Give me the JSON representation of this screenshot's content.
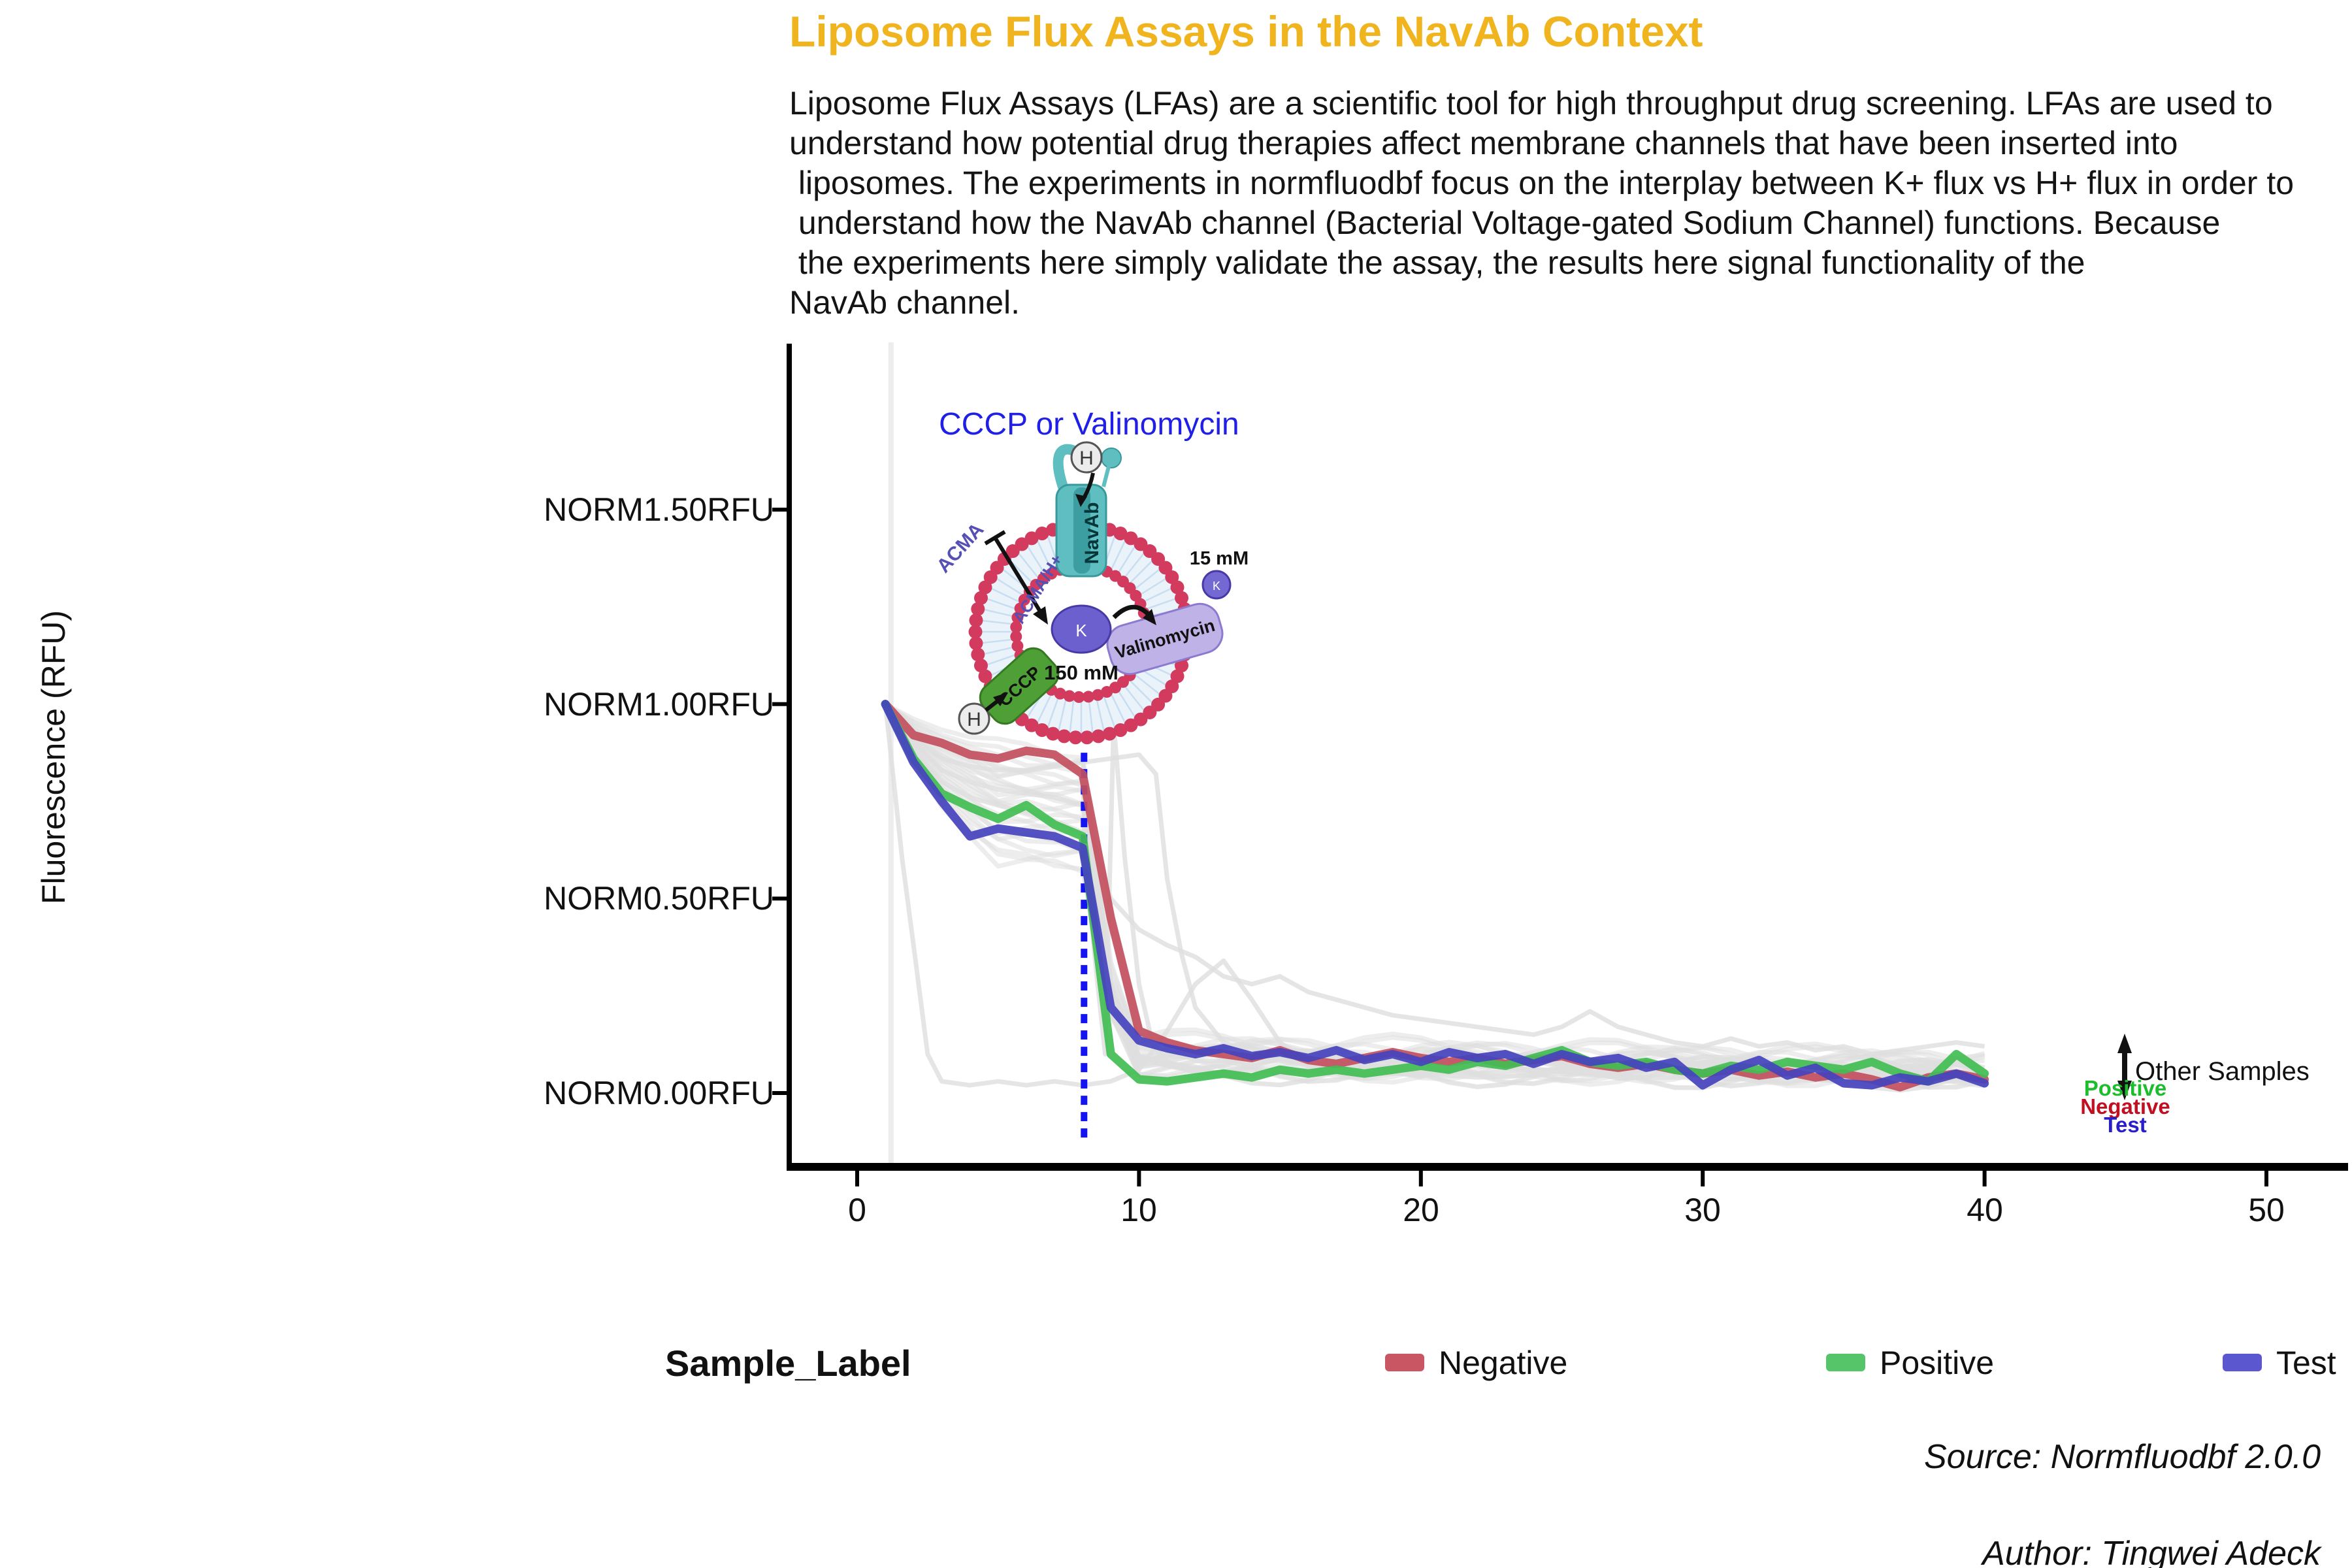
{
  "title": {
    "text": "Liposome Flux Assays in the NavAb Context",
    "color": "#F0B41E"
  },
  "description": {
    "text": "Liposome Flux Assays (LFAs) are a scientific tool for high throughput drug screening. LFAs are used to\nunderstand how potential drug therapies affect membrane channels that have been inserted into\n liposomes. The experiments in normfluodbf focus on the interplay between K+ flux vs H+ flux in order to\n understand how the NavAb channel (Bacterial Voltage-gated Sodium Channel) functions. Because\n the experiments here simply validate the assay, the results here signal functionality of the\nNavAb channel."
  },
  "axis": {
    "y_label": "Fluorescence (RFU)"
  },
  "chart_data": {
    "type": "line",
    "title": "Liposome Flux Assays in the NavAb Context",
    "xlabel": "",
    "ylabel": "Fluorescence (RFU)",
    "x_start": 1,
    "x_step": 1,
    "x_end": 40,
    "xlim": [
      -2.4,
      52.9
    ],
    "ylim": [
      -0.19,
      1.93
    ],
    "grid": false,
    "legend_position": "bottom",
    "x_ticks": [
      0,
      10,
      20,
      30,
      40,
      50
    ],
    "y_ticks": [
      {
        "label": "NORM1.50RFU",
        "value": 1.5
      },
      {
        "label": "NORM1.00RFU",
        "value": 1.0
      },
      {
        "label": "NORM0.50RFU",
        "value": 0.5
      },
      {
        "label": "NORM0.00RFU",
        "value": 0.0
      }
    ],
    "series": [
      {
        "name": "Negative",
        "color": "#C24F5D",
        "values": [
          1.0,
          0.92,
          0.9,
          0.87,
          0.86,
          0.88,
          0.87,
          0.82,
          0.45,
          0.16,
          0.13,
          0.11,
          0.1,
          0.09,
          0.11,
          0.085,
          0.075,
          0.09,
          0.105,
          0.09,
          0.08,
          0.09,
          0.075,
          0.085,
          0.095,
          0.075,
          0.065,
          0.075,
          0.06,
          0.05,
          0.06,
          0.045,
          0.055,
          0.04,
          0.05,
          0.035,
          0.015,
          0.04,
          0.05,
          0.035
        ]
      },
      {
        "name": "Positive",
        "color": "#41BD53",
        "values": [
          1.0,
          0.86,
          0.77,
          0.735,
          0.705,
          0.74,
          0.69,
          0.66,
          0.1,
          0.035,
          0.03,
          0.04,
          0.05,
          0.04,
          0.06,
          0.05,
          0.06,
          0.05,
          0.06,
          0.07,
          0.06,
          0.08,
          0.07,
          0.09,
          0.11,
          0.08,
          0.07,
          0.08,
          0.06,
          0.05,
          0.07,
          0.06,
          0.08,
          0.07,
          0.06,
          0.08,
          0.05,
          0.03,
          0.1,
          0.05
        ]
      },
      {
        "name": "Test",
        "color": "#4543BE",
        "values": [
          1.0,
          0.85,
          0.75,
          0.66,
          0.68,
          0.67,
          0.66,
          0.63,
          0.22,
          0.135,
          0.115,
          0.1,
          0.115,
          0.095,
          0.105,
          0.09,
          0.11,
          0.085,
          0.1,
          0.08,
          0.105,
          0.09,
          0.1,
          0.075,
          0.1,
          0.08,
          0.09,
          0.065,
          0.08,
          0.02,
          0.06,
          0.085,
          0.045,
          0.065,
          0.025,
          0.02,
          0.04,
          0.03,
          0.05,
          0.025
        ]
      }
    ],
    "other_samples": {
      "color": "#DEDEDE",
      "cluster": [
        {
          "p": 0.9,
          "t": 0.1,
          "s": 0.5
        },
        {
          "p": 0.88,
          "t": 0.08,
          "s": 1.2
        },
        {
          "p": 0.87,
          "t": 0.12,
          "s": 2.1
        },
        {
          "p": 0.855,
          "t": 0.06,
          "s": 3.3
        },
        {
          "p": 0.84,
          "t": 0.09,
          "s": 4.1
        },
        {
          "p": 0.83,
          "t": 0.05,
          "s": 0.9
        },
        {
          "p": 0.825,
          "t": 0.11,
          "s": 5.2
        },
        {
          "p": 0.81,
          "t": 0.07,
          "s": 2.8
        },
        {
          "p": 0.8,
          "t": 0.04,
          "s": 1.7
        },
        {
          "p": 0.79,
          "t": 0.1,
          "s": 3.9
        },
        {
          "p": 0.78,
          "t": 0.06,
          "s": 0.2
        },
        {
          "p": 0.77,
          "t": 0.08,
          "s": 4.7
        },
        {
          "p": 0.755,
          "t": 0.03,
          "s": 2.4
        },
        {
          "p": 0.745,
          "t": 0.09,
          "s": 5.8
        },
        {
          "p": 0.73,
          "t": 0.05,
          "s": 1.1
        },
        {
          "p": 0.72,
          "t": 0.07,
          "s": 3.6
        },
        {
          "p": 0.705,
          "t": 0.04,
          "s": 0.7
        },
        {
          "p": 0.69,
          "t": 0.1,
          "s": 4.4
        },
        {
          "p": 0.675,
          "t": 0.06,
          "s": 2.0
        },
        {
          "p": 0.66,
          "t": 0.03,
          "s": 5.5
        },
        {
          "p": 0.645,
          "t": 0.08,
          "s": 1.5
        },
        {
          "p": 0.63,
          "t": 0.05,
          "s": 3.0
        },
        {
          "p": 0.615,
          "t": 0.07,
          "s": 0.4
        },
        {
          "p": 0.6,
          "t": 0.04,
          "s": 4.9
        }
      ],
      "outliers": [
        {
          "name": "early-drop",
          "points": [
            [
              1,
              1.0
            ],
            [
              1.6,
              0.6
            ],
            [
              2,
              0.38
            ],
            [
              2.5,
              0.1
            ],
            [
              3,
              0.03
            ],
            [
              4,
              0.02
            ],
            [
              5,
              0.03
            ],
            [
              6,
              0.02
            ],
            [
              7,
              0.03
            ],
            [
              8,
              0.02
            ],
            [
              9,
              0.03
            ],
            [
              10,
              0.06
            ],
            [
              11,
              0.16
            ],
            [
              12,
              0.28
            ],
            [
              13,
              0.34
            ],
            [
              14,
              0.24
            ],
            [
              15,
              0.13
            ],
            [
              16,
              0.08
            ],
            [
              17,
              0.06
            ],
            [
              18,
              0.05
            ],
            [
              20,
              0.05
            ],
            [
              22,
              0.04
            ],
            [
              25,
              0.05
            ],
            [
              28,
              0.04
            ],
            [
              30,
              0.04
            ],
            [
              33,
              0.03
            ],
            [
              36,
              0.04
            ],
            [
              38,
              0.03
            ],
            [
              40,
              0.03
            ]
          ]
        },
        {
          "name": "rebound-spike",
          "points": [
            [
              1,
              1.0
            ],
            [
              2,
              0.88
            ],
            [
              3,
              0.8
            ],
            [
              4,
              0.76
            ],
            [
              5,
              0.74
            ],
            [
              6,
              0.72
            ],
            [
              7,
              0.7
            ],
            [
              8,
              0.67
            ],
            [
              8.5,
              0.3
            ],
            [
              8.8,
              0.1
            ],
            [
              9.1,
              0.95
            ],
            [
              9.5,
              0.6
            ],
            [
              10,
              0.28
            ],
            [
              10.5,
              0.12
            ],
            [
              11,
              0.08
            ],
            [
              12,
              0.06
            ],
            [
              13,
              0.05
            ],
            [
              14,
              0.06
            ],
            [
              15,
              0.05
            ],
            [
              16,
              0.06
            ],
            [
              18,
              0.05
            ],
            [
              20,
              0.06
            ],
            [
              22,
              0.05
            ],
            [
              24,
              0.06
            ],
            [
              26,
              0.05
            ],
            [
              28,
              0.06
            ],
            [
              30,
              0.05
            ],
            [
              32,
              0.06
            ],
            [
              34,
              0.05
            ],
            [
              36,
              0.06
            ],
            [
              38,
              0.05
            ],
            [
              40,
              0.05
            ]
          ]
        },
        {
          "name": "late-drop",
          "points": [
            [
              1,
              1.0
            ],
            [
              2,
              0.91
            ],
            [
              3,
              0.86
            ],
            [
              4,
              0.84
            ],
            [
              5,
              0.83
            ],
            [
              6,
              0.83
            ],
            [
              7,
              0.84
            ],
            [
              8,
              0.85
            ],
            [
              9,
              0.86
            ],
            [
              10,
              0.87
            ],
            [
              10.6,
              0.82
            ],
            [
              11,
              0.55
            ],
            [
              11.5,
              0.36
            ],
            [
              12,
              0.22
            ],
            [
              13,
              0.13
            ],
            [
              14,
              0.1
            ],
            [
              15,
              0.09
            ],
            [
              16,
              0.08
            ],
            [
              18,
              0.07
            ],
            [
              20,
              0.06
            ],
            [
              22,
              0.07
            ],
            [
              24,
              0.06
            ],
            [
              26,
              0.05
            ],
            [
              28,
              0.06
            ],
            [
              30,
              0.05
            ],
            [
              32,
              0.05
            ],
            [
              34,
              0.04
            ],
            [
              36,
              0.05
            ],
            [
              38,
              0.04
            ],
            [
              40,
              0.04
            ]
          ]
        },
        {
          "name": "high-tail",
          "points": [
            [
              1,
              1.0
            ],
            [
              2,
              0.9
            ],
            [
              3,
              0.83
            ],
            [
              4,
              0.8
            ],
            [
              5,
              0.78
            ],
            [
              6,
              0.77
            ],
            [
              7,
              0.76
            ],
            [
              8,
              0.74
            ],
            [
              9,
              0.5
            ],
            [
              10,
              0.42
            ],
            [
              11,
              0.38
            ],
            [
              12,
              0.35
            ],
            [
              13,
              0.3
            ],
            [
              14,
              0.28
            ],
            [
              15,
              0.3
            ],
            [
              16,
              0.26
            ],
            [
              17,
              0.24
            ],
            [
              18,
              0.22
            ],
            [
              19,
              0.2
            ],
            [
              20,
              0.19
            ],
            [
              21,
              0.18
            ],
            [
              22,
              0.17
            ],
            [
              23,
              0.16
            ],
            [
              24,
              0.15
            ],
            [
              25,
              0.17
            ],
            [
              26,
              0.21
            ],
            [
              27,
              0.17
            ],
            [
              28,
              0.15
            ],
            [
              29,
              0.13
            ],
            [
              30,
              0.12
            ],
            [
              31,
              0.14
            ],
            [
              32,
              0.12
            ],
            [
              33,
              0.13
            ],
            [
              34,
              0.11
            ],
            [
              35,
              0.12
            ],
            [
              36,
              0.1
            ],
            [
              37,
              0.11
            ],
            [
              38,
              0.12
            ],
            [
              39,
              0.13
            ],
            [
              40,
              0.12
            ]
          ]
        }
      ]
    },
    "vlines": [
      {
        "x": 1.2,
        "color": "#EDEDED",
        "style": "solid",
        "y_from": -0.19,
        "y_to": 1.93
      },
      {
        "x": 8.05,
        "color": "#1414F0",
        "style": "dotted",
        "y_from": -0.116,
        "y_to": 0.875
      }
    ]
  },
  "diagram": {
    "title": "CCCP or Valinomycin",
    "title_color": "#1F1FE8",
    "channel_label": "NavAb",
    "cccp_label": "CCCP",
    "valinomycin_label": "Valinomycin",
    "k_label": "K",
    "h_label": "H",
    "inside_conc": "150 mM",
    "outside_conc": "15 mM",
    "acma_label": "ACMA",
    "acma_h_label": "ACMA/H+"
  },
  "annotation_right": {
    "label": "Other Samples",
    "stack": [
      {
        "label": "Positive",
        "color": "#1DBE2E"
      },
      {
        "label": "Negative",
        "color": "#C01022"
      },
      {
        "label": "Test",
        "color": "#2A1ECB"
      }
    ]
  },
  "legend": {
    "title": "Sample_Label",
    "items": [
      {
        "label": "Negative",
        "color": "#C85763"
      },
      {
        "label": "Positive",
        "color": "#56C56A"
      },
      {
        "label": "Test",
        "color": "#5B57CE"
      }
    ]
  },
  "footer": {
    "source": "Source: Normfluodbf 2.0.0",
    "author": "Author: Tingwei Adeck"
  }
}
